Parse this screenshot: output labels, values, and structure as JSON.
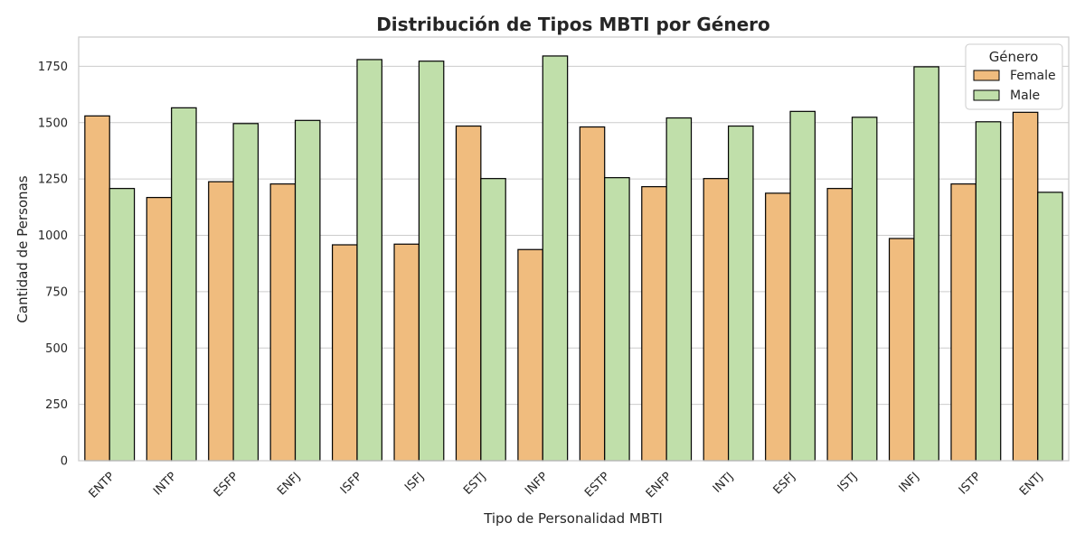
{
  "chart_data": {
    "type": "bar",
    "title": "Distribución de Tipos MBTI por Género",
    "xlabel": "Tipo de Personalidad MBTI",
    "ylabel": "Cantidad de Personas",
    "ylim": [
      0,
      1880
    ],
    "yticks": [
      0,
      250,
      500,
      750,
      1000,
      1250,
      1500,
      1750
    ],
    "categories": [
      "ENTP",
      "INTP",
      "ESFP",
      "ENFJ",
      "ISFP",
      "ISFJ",
      "ESTJ",
      "INFP",
      "ESTP",
      "ENFP",
      "INTJ",
      "ESFJ",
      "ISTJ",
      "INFJ",
      "ISTP",
      "ENTJ"
    ],
    "legend_title": "Género",
    "legend_position": "top-right",
    "grid": "horizontal",
    "series": [
      {
        "name": "Female",
        "color": "#F0BC7E",
        "values": [
          1530,
          1168,
          1238,
          1228,
          958,
          961,
          1485,
          937,
          1481,
          1216,
          1252,
          1187,
          1208,
          986,
          1228,
          1546
        ]
      },
      {
        "name": "Male",
        "color": "#C0DFAA",
        "values": [
          1208,
          1566,
          1496,
          1510,
          1780,
          1773,
          1252,
          1796,
          1256,
          1521,
          1485,
          1550,
          1524,
          1748,
          1504,
          1191
        ]
      }
    ]
  }
}
